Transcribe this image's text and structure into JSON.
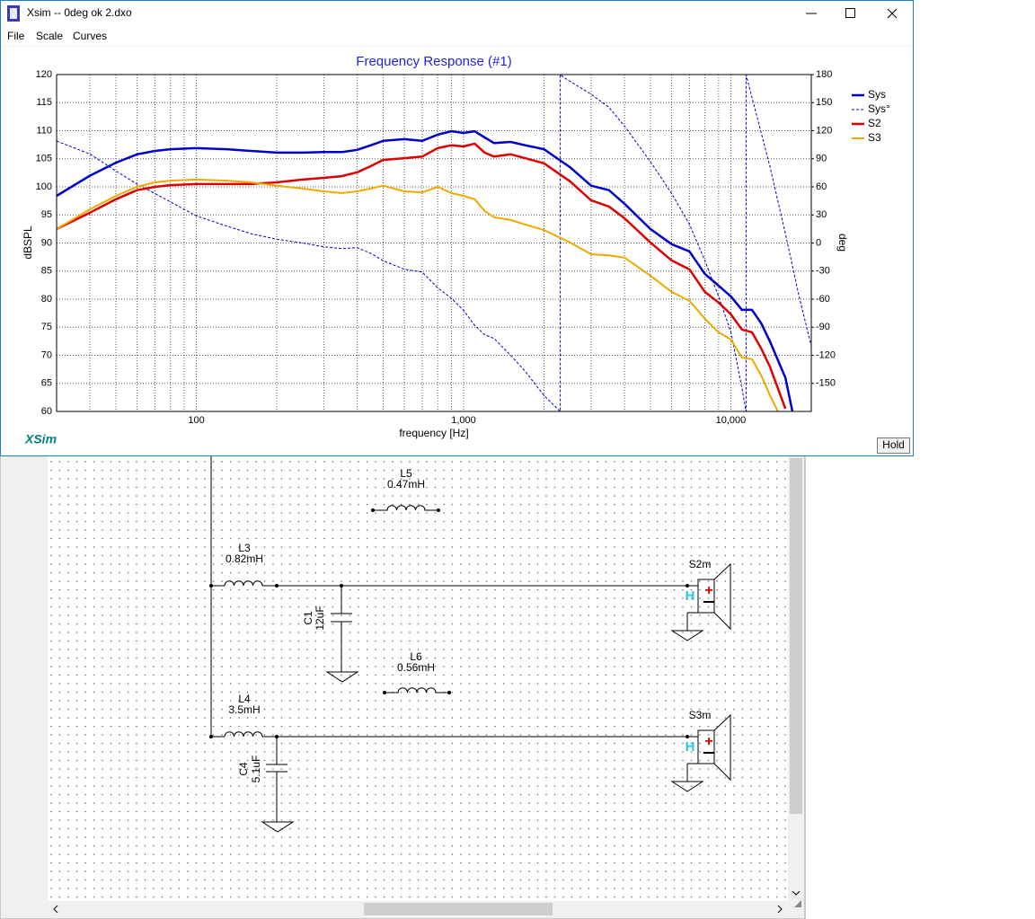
{
  "window": {
    "title": "Xsim -- 0deg ok 2.dxo",
    "menu": [
      "File",
      "Scale",
      "Curves"
    ],
    "branding": "XSim",
    "hold_button": "Hold"
  },
  "chart_data": {
    "type": "line",
    "title": "Frequency Response (#1)",
    "xlabel": "frequency [Hz]",
    "ylabel": "dBSPL",
    "y2label": "deg",
    "log_x": true,
    "grid": true,
    "legend": "right",
    "xlim": [
      30,
      20000
    ],
    "xticks": [
      100,
      {
        "value": 1000,
        "label": "1,000"
      },
      {
        "value": 10000,
        "label": "10,000"
      }
    ],
    "ylim": [
      60,
      120
    ],
    "yticks": [
      60,
      65,
      70,
      75,
      80,
      85,
      90,
      95,
      100,
      105,
      110,
      115,
      120
    ],
    "y2lim": [
      -180,
      180
    ],
    "y2ticks": [
      -150,
      -120,
      -90,
      -60,
      -30,
      0,
      30,
      60,
      90,
      120,
      150,
      180
    ],
    "series": [
      {
        "name": "Sys",
        "color": "#0000cc",
        "width": 2.5,
        "x": [
          30,
          40,
          50,
          60,
          70,
          80,
          100,
          130,
          160,
          200,
          250,
          300,
          350,
          400,
          450,
          500,
          600,
          700,
          800,
          900,
          1000,
          1100,
          1200,
          1300,
          1500,
          1700,
          2000,
          2500,
          3000,
          3500,
          4000,
          5000,
          6000,
          7000,
          8000,
          9000,
          10000,
          11000,
          12000,
          13000,
          14000,
          16000,
          17000
        ],
        "values": [
          98.4,
          102,
          104.3,
          105.8,
          106.4,
          106.7,
          106.9,
          106.7,
          106.4,
          106.1,
          106.1,
          106.2,
          106.2,
          106.6,
          107.4,
          108.2,
          108.5,
          108.2,
          109.3,
          109.9,
          109.6,
          109.9,
          108.8,
          107.8,
          108,
          107.4,
          106.7,
          103.5,
          100.2,
          99.4,
          97,
          92.5,
          89.8,
          88.5,
          84.5,
          82.4,
          80.5,
          78.1,
          78.1,
          75.7,
          72.5,
          66,
          60
        ]
      },
      {
        "name": "Sys°",
        "color": "#0000cc",
        "width": 1,
        "dash": true,
        "axis": "y2",
        "x": [
          30,
          40,
          50,
          60,
          80,
          100,
          130,
          160,
          200,
          250,
          300,
          350,
          400,
          450,
          500,
          600,
          700,
          800,
          900,
          1000,
          1100,
          1200,
          1300,
          1500,
          1700,
          2000,
          2300,
          2300,
          2400,
          3000,
          3500,
          4000,
          5000,
          6000,
          7000,
          8000,
          9000,
          10000,
          11000,
          11400,
          11400,
          14000,
          16000,
          18000,
          20000
        ],
        "values": [
          109,
          95,
          77,
          63,
          44,
          29,
          18,
          10,
          4,
          0,
          -4,
          -6,
          -5,
          -11,
          -19,
          -28,
          -31,
          -48,
          -59,
          -72,
          -88,
          -98,
          -102,
          -120,
          -137,
          -163,
          -180,
          180,
          176,
          159,
          145,
          125,
          87,
          53,
          20,
          -19,
          -57,
          -95,
          -155,
          -180,
          180,
          82,
          10,
          -57,
          -110
        ]
      },
      {
        "name": "S2",
        "color": "#dd0000",
        "width": 2.5,
        "x": [
          30,
          40,
          50,
          60,
          70,
          80,
          100,
          130,
          160,
          200,
          250,
          300,
          350,
          400,
          450,
          500,
          600,
          700,
          800,
          900,
          1000,
          1100,
          1200,
          1300,
          1500,
          1700,
          2000,
          2500,
          3000,
          3500,
          4000,
          5000,
          6000,
          7000,
          8000,
          9000,
          10000,
          11000,
          12000,
          13000,
          14000,
          16000
        ],
        "values": [
          92.5,
          95.4,
          97.8,
          99.4,
          100,
          100.3,
          100.5,
          100.5,
          100.5,
          100.8,
          101.3,
          101.6,
          101.9,
          102.6,
          103.7,
          104.8,
          105.1,
          105.4,
          106.9,
          107.4,
          107.2,
          107.7,
          106.1,
          105.4,
          105.8,
          105.1,
          104.2,
          101,
          97.6,
          96.5,
          94.4,
          90.1,
          86.9,
          85.3,
          81.3,
          79.4,
          77.3,
          74.6,
          74.1,
          71.2,
          68,
          60.5
        ]
      },
      {
        "name": "S3",
        "color": "#eeaa00",
        "width": 2,
        "x": [
          30,
          40,
          50,
          60,
          70,
          80,
          100,
          130,
          160,
          200,
          250,
          300,
          350,
          400,
          450,
          500,
          600,
          700,
          800,
          900,
          1000,
          1100,
          1200,
          1300,
          1500,
          1700,
          2000,
          2500,
          3000,
          3500,
          4000,
          5000,
          6000,
          7000,
          8000,
          9000,
          10000,
          11000,
          12000,
          13000,
          14000,
          15000
        ],
        "values": [
          92.5,
          96,
          98.4,
          100,
          100.8,
          101.1,
          101.3,
          101.1,
          100.8,
          100.2,
          99.7,
          99.2,
          98.9,
          99.2,
          99.7,
          100.2,
          99.2,
          99,
          100,
          98.9,
          98.4,
          97.8,
          95.7,
          94.6,
          94.1,
          93.3,
          92.3,
          90.1,
          88,
          87.8,
          87.4,
          84.2,
          81.3,
          79.7,
          76.5,
          74.1,
          72.8,
          69.6,
          69.3,
          66.4,
          62.9,
          60
        ]
      }
    ]
  },
  "schematic": {
    "components": [
      {
        "name": "L5",
        "value": "0.47mH"
      },
      {
        "name": "L3",
        "value": "0.82mH"
      },
      {
        "name": "C1",
        "value": "12uF"
      },
      {
        "name": "L6",
        "value": "0.56mH"
      },
      {
        "name": "L4",
        "value": "3.5mH"
      },
      {
        "name": "C4",
        "value": "5.1uF"
      }
    ],
    "drivers": [
      {
        "name": "S2m"
      },
      {
        "name": "S3m"
      }
    ]
  }
}
